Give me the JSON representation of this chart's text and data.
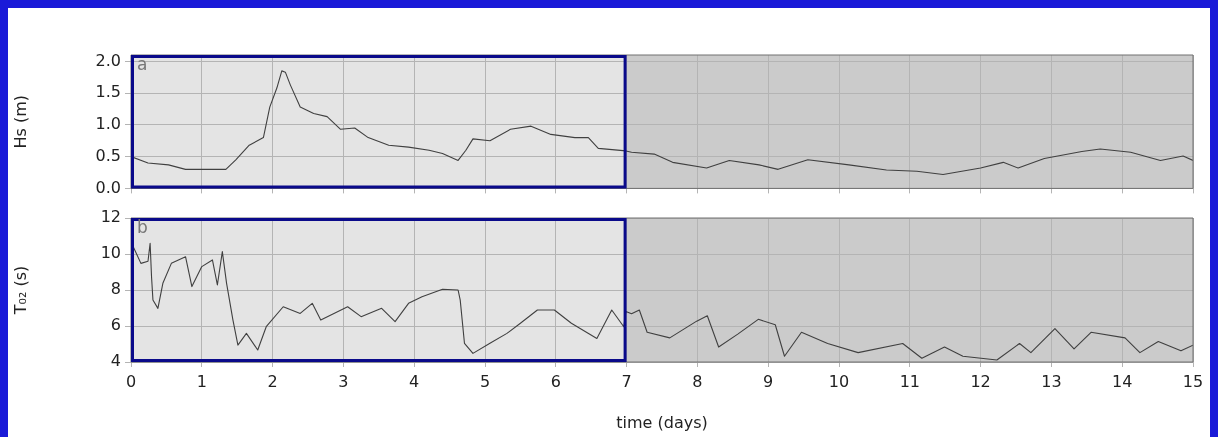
{
  "chart_data": [
    {
      "type": "line",
      "ylabel": "Hs (m)",
      "annotations": [
        "a"
      ],
      "tick_labels": "y",
      "grid": true,
      "marker": "none",
      "line_style": "solid",
      "xlim": [
        0,
        15
      ],
      "xticks": [
        0,
        1,
        2,
        3,
        4,
        5,
        6,
        7,
        8,
        9,
        10,
        11,
        12,
        13,
        14,
        15
      ],
      "ylim": [
        0,
        2.1
      ],
      "yticks": [
        {
          "value": 0,
          "label": "0.0"
        },
        0.5,
        {
          "value": 1,
          "label": "1.0"
        },
        1.5,
        {
          "value": 2,
          "label": "2.0"
        }
      ],
      "bands": [
        {
          "axis": "x",
          "from": 0,
          "to": 7,
          "color": "#e4e4e4"
        }
      ],
      "series": [
        {
          "color": "#404040",
          "x": [
            0,
            0.24,
            0.53,
            0.77,
            1.0,
            1.34,
            1.48,
            1.67,
            1.87,
            1.96,
            2.06,
            2.13,
            2.18,
            2.25,
            2.39,
            2.58,
            2.77,
            2.96,
            3.16,
            3.35,
            3.64,
            3.92,
            4.21,
            4.4,
            4.62,
            4.73,
            4.83,
            5.07,
            5.36,
            5.65,
            5.93,
            6.27,
            6.46,
            6.6,
            6.99,
            7.07,
            7.39,
            7.65,
            8.13,
            8.45,
            8.87,
            9.14,
            9.56,
            10.14,
            10.67,
            11.1,
            11.47,
            12.0,
            12.32,
            12.53,
            12.9,
            13.43,
            13.69,
            14.12,
            14.54,
            14.86,
            15
          ],
          "values": [
            0.5,
            0.4,
            0.37,
            0.3,
            0.3,
            0.3,
            0.45,
            0.68,
            0.8,
            1.28,
            1.58,
            1.85,
            1.83,
            1.63,
            1.28,
            1.18,
            1.13,
            0.93,
            0.95,
            0.8,
            0.68,
            0.65,
            0.6,
            0.55,
            0.44,
            0.6,
            0.78,
            0.75,
            0.93,
            0.98,
            0.85,
            0.8,
            0.8,
            0.63,
            0.59,
            0.57,
            0.54,
            0.41,
            0.32,
            0.44,
            0.37,
            0.3,
            0.45,
            0.37,
            0.29,
            0.27,
            0.22,
            0.32,
            0.41,
            0.32,
            0.47,
            0.58,
            0.62,
            0.57,
            0.44,
            0.51,
            0.44
          ]
        }
      ]
    },
    {
      "type": "line",
      "ylabel": "T₀₂ (s)",
      "xlabel": "time (days)",
      "annotations": [
        "b"
      ],
      "grid": true,
      "marker": "none",
      "line_style": "solid",
      "xlim": [
        0,
        15
      ],
      "xticks": [
        0,
        1,
        2,
        3,
        4,
        5,
        6,
        7,
        8,
        9,
        10,
        11,
        12,
        13,
        14,
        15
      ],
      "ylim": [
        4,
        12
      ],
      "yticks": [
        4,
        6,
        8,
        10,
        12
      ],
      "bands": [
        {
          "axis": "x",
          "from": 0,
          "to": 7,
          "color": "#e4e4e4"
        }
      ],
      "series": [
        {
          "color": "#404040",
          "x": [
            0.02,
            0.14,
            0.24,
            0.27,
            0.29,
            0.31,
            0.38,
            0.45,
            0.57,
            0.77,
            0.86,
            1.0,
            1.15,
            1.22,
            1.29,
            1.35,
            1.44,
            1.51,
            1.63,
            1.79,
            1.91,
            2.15,
            2.39,
            2.56,
            2.68,
            3.06,
            3.25,
            3.54,
            3.73,
            3.92,
            4.11,
            4.4,
            4.62,
            4.65,
            4.71,
            4.83,
            5.07,
            5.31,
            5.5,
            5.74,
            5.98,
            6.22,
            6.58,
            6.79,
            6.96,
            6.99,
            7.07,
            7.18,
            7.29,
            7.61,
            7.99,
            8.14,
            8.3,
            8.57,
            8.86,
            9.1,
            9.23,
            9.47,
            9.84,
            10.27,
            10.9,
            11.17,
            11.49,
            11.75,
            12.23,
            12.55,
            12.71,
            13.05,
            13.32,
            13.56,
            14.04,
            14.25,
            14.51,
            14.83,
            15
          ],
          "values": [
            10.5,
            9.48,
            9.6,
            10.6,
            8.74,
            7.44,
            6.98,
            8.37,
            9.48,
            9.85,
            8.19,
            9.3,
            9.67,
            8.28,
            10.13,
            8.37,
            6.33,
            4.94,
            5.59,
            4.67,
            5.96,
            7.07,
            6.7,
            7.26,
            6.33,
            7.07,
            6.52,
            6.98,
            6.24,
            7.26,
            7.63,
            8.04,
            8.0,
            7.44,
            5.04,
            4.48,
            5.04,
            5.59,
            6.15,
            6.89,
            6.89,
            6.15,
            5.31,
            6.89,
            5.96,
            6.8,
            6.68,
            6.89,
            5.65,
            5.34,
            6.27,
            6.57,
            4.83,
            5.55,
            6.37,
            6.07,
            4.32,
            5.65,
            5.03,
            4.52,
            5.03,
            4.21,
            4.83,
            4.32,
            4.11,
            5.03,
            4.52,
            5.86,
            4.73,
            5.65,
            5.34,
            4.52,
            5.14,
            4.62,
            4.93
          ]
        }
      ]
    }
  ]
}
